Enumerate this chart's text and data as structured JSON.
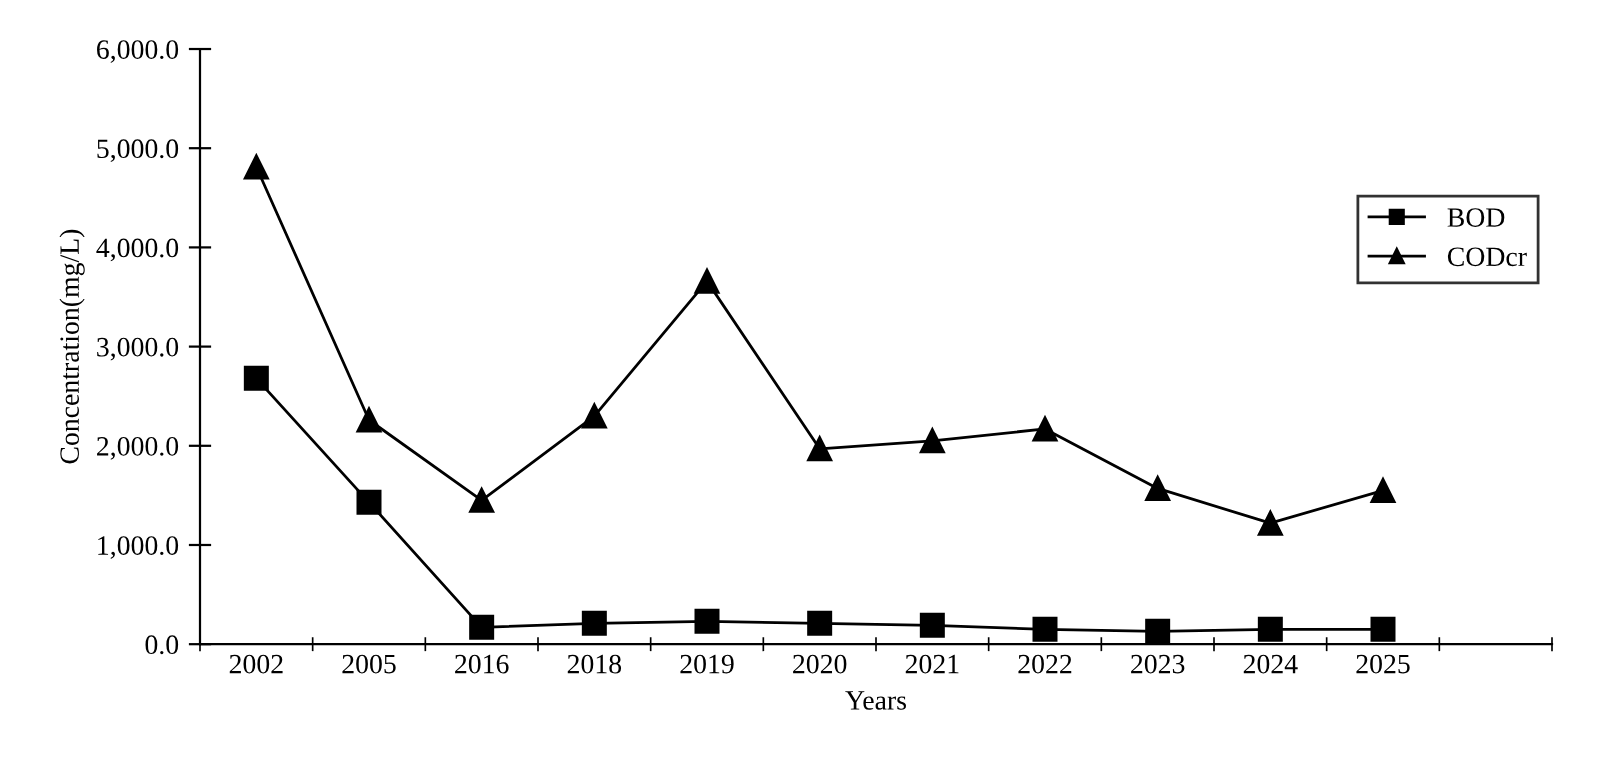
{
  "chart_data": {
    "type": "line",
    "xlabel": "Years",
    "ylabel": "Concentration(mg/L)",
    "categories": [
      "2002",
      "2005",
      "2016",
      "2018",
      "2019",
      "2020",
      "2021",
      "2022",
      "2023",
      "2024",
      "2025",
      null
    ],
    "series": [
      {
        "name": "BOD",
        "color": "#000000",
        "marker": "square",
        "values": [
          2680,
          1430,
          170,
          210,
          230,
          210,
          190,
          150,
          130,
          150,
          150,
          null
        ]
      },
      {
        "name": "CODcr",
        "color": "#000000",
        "marker": "triangle",
        "values": [
          4810,
          2260,
          1450,
          2300,
          3660,
          1970,
          2050,
          2170,
          1570,
          1220,
          1550,
          null
        ]
      }
    ],
    "ylim": [
      0,
      6000
    ],
    "yticks": [
      {
        "value": 0,
        "label": "0.0"
      },
      {
        "value": 1000,
        "label": "1,000.0"
      },
      {
        "value": 2000,
        "label": "2,000.0"
      },
      {
        "value": 3000,
        "label": "3,000.0"
      },
      {
        "value": 4000,
        "label": "4,000.0"
      },
      {
        "value": 5000,
        "label": "5,000.0"
      },
      {
        "value": 6000,
        "label": "6,000.0"
      }
    ],
    "grid": false,
    "legend": "right",
    "line_style": "solid"
  }
}
